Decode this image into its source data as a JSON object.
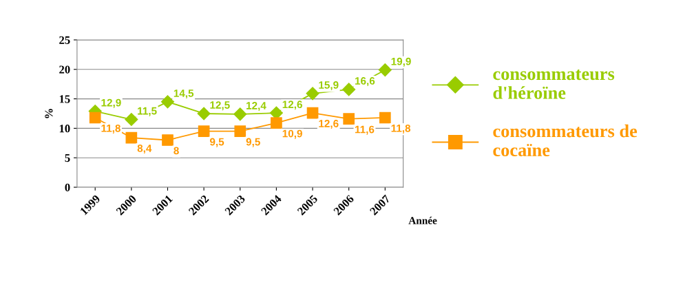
{
  "chart_data": {
    "type": "line",
    "categories": [
      "1999",
      "2000",
      "2001",
      "2002",
      "2003",
      "2004",
      "2005",
      "2006",
      "2007"
    ],
    "xlabel": "Année",
    "ylabel": "%",
    "ylim": [
      0,
      25
    ],
    "yticks": [
      0,
      5,
      10,
      15,
      20,
      25
    ],
    "grid": "y",
    "legend": "right",
    "series": [
      {
        "name": "consommateurs d'héroïne",
        "color": "#99cc00",
        "marker": "diamond",
        "values": [
          12.9,
          11.5,
          14.5,
          12.5,
          12.4,
          12.6,
          15.9,
          16.6,
          19.9
        ],
        "value_labels": [
          "12,9",
          "11,5",
          "14,5",
          "12,5",
          "12,4",
          "12,6",
          "15,9",
          "16,6",
          "19,9"
        ]
      },
      {
        "name": "consommateurs de cocaïne",
        "color": "#ff9900",
        "marker": "square",
        "values": [
          11.8,
          8.4,
          8,
          9.5,
          9.5,
          10.9,
          12.6,
          11.6,
          11.8
        ],
        "value_labels": [
          "11,8",
          "8,4",
          "8",
          "9,5",
          "9,5",
          "10,9",
          "12,6",
          "11,6",
          "11,8"
        ]
      }
    ]
  }
}
